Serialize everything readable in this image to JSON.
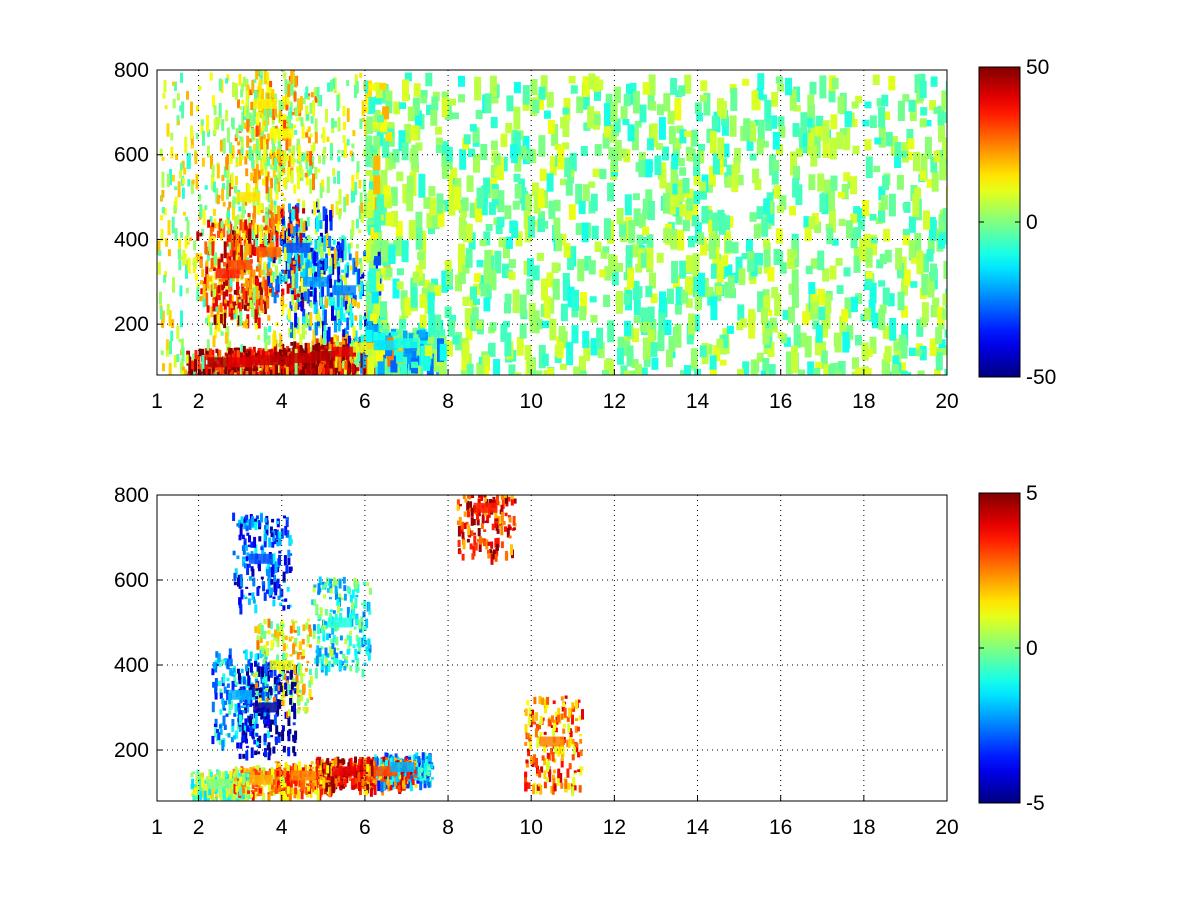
{
  "chart_data": [
    {
      "type": "heatmap",
      "title": "",
      "xlabel": "",
      "ylabel": "",
      "x_ticks": [
        1,
        2,
        4,
        6,
        8,
        10,
        12,
        14,
        16,
        18,
        20
      ],
      "y_ticks": [
        200,
        400,
        600,
        800
      ],
      "xlim": [
        1,
        20
      ],
      "ylim": [
        80,
        800
      ],
      "grid": true,
      "colormap": "jet",
      "colorbar": {
        "min": -50,
        "max": 50,
        "ticks": [
          50,
          0,
          -50
        ],
        "placement": "right"
      },
      "data_points": [
        {
          "x": 2.5,
          "y": 110,
          "value": 45
        },
        {
          "x": 3.0,
          "y": 110,
          "value": 40
        },
        {
          "x": 3.5,
          "y": 115,
          "value": 42
        },
        {
          "x": 4.0,
          "y": 115,
          "value": 44
        },
        {
          "x": 4.5,
          "y": 120,
          "value": 43
        },
        {
          "x": 5.0,
          "y": 125,
          "value": 45
        },
        {
          "x": 5.5,
          "y": 135,
          "value": 40
        },
        {
          "x": 6.0,
          "y": 145,
          "value": 10
        },
        {
          "x": 6.5,
          "y": 150,
          "value": -15
        },
        {
          "x": 7.0,
          "y": 155,
          "value": -10
        },
        {
          "x": 2.7,
          "y": 320,
          "value": 35
        },
        {
          "x": 3.0,
          "y": 340,
          "value": 30
        },
        {
          "x": 3.7,
          "y": 370,
          "value": 28
        },
        {
          "x": 4.4,
          "y": 380,
          "value": -30
        },
        {
          "x": 4.8,
          "y": 300,
          "value": -22
        },
        {
          "x": 5.5,
          "y": 280,
          "value": -25
        },
        {
          "x": 3.2,
          "y": 500,
          "value": 15
        },
        {
          "x": 3.6,
          "y": 720,
          "value": 14
        },
        {
          "x": 4.0,
          "y": 650,
          "value": 12
        }
      ]
    },
    {
      "type": "heatmap",
      "title": "",
      "xlabel": "",
      "ylabel": "",
      "x_ticks": [
        1,
        2,
        4,
        6,
        8,
        10,
        12,
        14,
        16,
        18,
        20
      ],
      "y_ticks": [
        200,
        400,
        600,
        800
      ],
      "xlim": [
        1,
        20
      ],
      "ylim": [
        80,
        800
      ],
      "grid": true,
      "colormap": "jet",
      "colorbar": {
        "min": -5,
        "max": 5,
        "ticks": [
          5,
          0,
          -5
        ],
        "placement": "right"
      },
      "data_points": [
        {
          "x": 2.5,
          "y": 120,
          "value": 0
        },
        {
          "x": 3.5,
          "y": 130,
          "value": 2
        },
        {
          "x": 4.5,
          "y": 140,
          "value": 2.5
        },
        {
          "x": 5.5,
          "y": 150,
          "value": 4
        },
        {
          "x": 6.5,
          "y": 150,
          "value": 3
        },
        {
          "x": 6.9,
          "y": 160,
          "value": -2
        },
        {
          "x": 3.0,
          "y": 330,
          "value": -2
        },
        {
          "x": 3.6,
          "y": 300,
          "value": -4.5
        },
        {
          "x": 4.0,
          "y": 400,
          "value": 1
        },
        {
          "x": 3.5,
          "y": 650,
          "value": -3
        },
        {
          "x": 5.4,
          "y": 500,
          "value": -1
        },
        {
          "x": 8.9,
          "y": 770,
          "value": 3.5
        },
        {
          "x": 10.5,
          "y": 220,
          "value": 2.5
        }
      ]
    }
  ]
}
